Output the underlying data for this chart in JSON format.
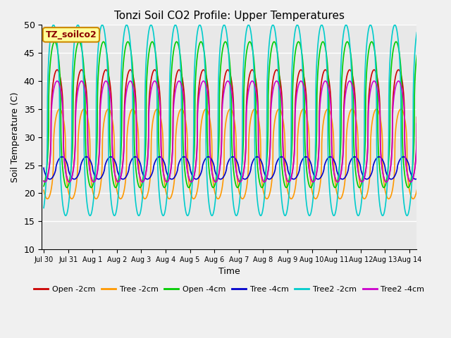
{
  "title": "Tonzi Soil CO2 Profile: Upper Temperatures",
  "xlabel": "Time",
  "ylabel": "Soil Temperature (C)",
  "ylim": [
    10,
    50
  ],
  "annotation": "TZ_soilco2",
  "legend": [
    {
      "label": "Open -2cm",
      "color": "#cc0000"
    },
    {
      "label": "Tree -2cm",
      "color": "#ff9900"
    },
    {
      "label": "Open -4cm",
      "color": "#00cc00"
    },
    {
      "label": "Tree -4cm",
      "color": "#0000cc"
    },
    {
      "label": "Tree2 -2cm",
      "color": "#00cccc"
    },
    {
      "label": "Tree2 -4cm",
      "color": "#cc00cc"
    }
  ],
  "xtick_labels": [
    "Jul 30",
    "Jul 31",
    "Aug 1",
    "Aug 2",
    "Aug 3",
    "Aug 4",
    "Aug 5",
    "Aug 6",
    "Aug 7",
    "Aug 8",
    "Aug 9",
    "Aug 10",
    "Aug 11",
    "Aug 12",
    "Aug 13",
    "Aug 14"
  ],
  "xtick_positions": [
    0,
    1,
    2,
    3,
    4,
    5,
    6,
    7,
    8,
    9,
    10,
    11,
    12,
    13,
    14,
    15
  ],
  "series": [
    {
      "key": "open_2cm",
      "amp": 10,
      "base": 32,
      "phase": 0.05,
      "skew": 2.5,
      "color": "#cc0000"
    },
    {
      "key": "tree_2cm",
      "amp": 8,
      "base": 27,
      "phase": 0.15,
      "skew": 2.5,
      "color": "#ff9900"
    },
    {
      "key": "open_4cm",
      "amp": 13,
      "base": 34,
      "phase": -0.05,
      "skew": 2.5,
      "color": "#00cc00"
    },
    {
      "key": "tree_4cm",
      "amp": 2.0,
      "base": 24.5,
      "phase": 0.25,
      "skew": 1.5,
      "color": "#0000cc"
    },
    {
      "key": "tree2_2cm",
      "amp": 17,
      "base": 33,
      "phase": -0.1,
      "skew": 2.5,
      "color": "#00cccc"
    },
    {
      "key": "tree2_4cm",
      "amp": 9,
      "base": 31,
      "phase": 0.05,
      "skew": 2.5,
      "color": "#cc00cc"
    }
  ],
  "bg_color": "#e8e8e8",
  "fig_bg_color": "#f0f0f0",
  "plot_start_day": -0.08,
  "plot_end_day": 15.3
}
